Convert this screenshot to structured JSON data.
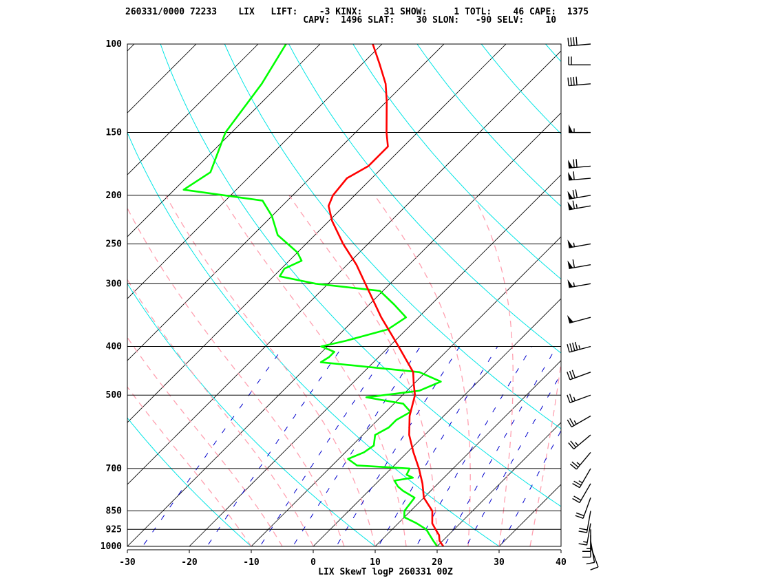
{
  "header": {
    "line1": "260331/0000 72233    LIX   LIFT:    -3 KINX:    31 SHOW:     1 TOTL:    46 CAPE:  1375",
    "line2": "                                 CAPV:  1496 SLAT:    30 SLON:   -90 SELV:    10"
  },
  "footer": "LIX SkewT logP 260331 00Z",
  "colors": {
    "temperature": "#ff0000",
    "dewpoint": "#00ff00",
    "isotherm": "#000000",
    "isobar": "#000000",
    "dry_adiabat": "#00e5e5",
    "moist_adiabat": "#ffa0b0",
    "mixing_ratio": "#0000cc",
    "wind_barb": "#000000"
  },
  "chart_data": {
    "type": "skewt",
    "station": "LIX",
    "station_id": "72233",
    "datetime": "260331/0000",
    "indices": {
      "LIFT": -3,
      "KINX": 31,
      "SHOW": 1,
      "TOTL": 46,
      "CAPE": 1375,
      "CAPV": 1496,
      "SLAT": 30,
      "SLON": -90,
      "SELV": 10
    },
    "pressure_levels": [
      100,
      150,
      200,
      250,
      300,
      400,
      500,
      700,
      850,
      925,
      1000
    ],
    "temperature_ticks": [
      -30,
      -20,
      -10,
      0,
      10,
      20,
      30,
      40
    ],
    "xlim": [
      -30,
      40
    ],
    "ylim": [
      1000,
      100
    ],
    "yscale": "log",
    "temperature_profile": [
      [
        1000,
        21.0
      ],
      [
        975,
        19.5
      ],
      [
        950,
        18.5
      ],
      [
        925,
        17.0
      ],
      [
        900,
        15.5
      ],
      [
        850,
        13.5
      ],
      [
        800,
        10.0
      ],
      [
        750,
        7.5
      ],
      [
        700,
        4.5
      ],
      [
        650,
        1.0
      ],
      [
        600,
        -2.5
      ],
      [
        550,
        -5.5
      ],
      [
        500,
        -8.0
      ],
      [
        475,
        -10.0
      ],
      [
        450,
        -12.0
      ],
      [
        400,
        -18.5
      ],
      [
        350,
        -26.0
      ],
      [
        300,
        -34.0
      ],
      [
        275,
        -38.5
      ],
      [
        250,
        -44.0
      ],
      [
        225,
        -49.5
      ],
      [
        210,
        -52.5
      ],
      [
        200,
        -53.5
      ],
      [
        185,
        -54.0
      ],
      [
        175,
        -52.5
      ],
      [
        160,
        -52.5
      ],
      [
        150,
        -55.0
      ],
      [
        130,
        -60.0
      ],
      [
        120,
        -63.0
      ],
      [
        110,
        -67.0
      ],
      [
        100,
        -71.5
      ]
    ],
    "dewpoint_profile": [
      [
        1000,
        20.0
      ],
      [
        975,
        18.5
      ],
      [
        950,
        17.0
      ],
      [
        925,
        15.5
      ],
      [
        900,
        13.0
      ],
      [
        875,
        10.0
      ],
      [
        850,
        9.0
      ],
      [
        800,
        8.5
      ],
      [
        775,
        5.5
      ],
      [
        760,
        4.0
      ],
      [
        740,
        2.5
      ],
      [
        730,
        5.0
      ],
      [
        720,
        3.5
      ],
      [
        700,
        3.0
      ],
      [
        690,
        -6.0
      ],
      [
        670,
        -8.5
      ],
      [
        650,
        -7.0
      ],
      [
        630,
        -6.5
      ],
      [
        600,
        -8.0
      ],
      [
        580,
        -7.0
      ],
      [
        560,
        -7.0
      ],
      [
        540,
        -6.0
      ],
      [
        520,
        -8.5
      ],
      [
        505,
        -15.5
      ],
      [
        490,
        -8.0
      ],
      [
        470,
        -6.0
      ],
      [
        450,
        -11.0
      ],
      [
        430,
        -28.5
      ],
      [
        420,
        -28.0
      ],
      [
        410,
        -28.0
      ],
      [
        400,
        -31.0
      ],
      [
        390,
        -28.0
      ],
      [
        370,
        -23.0
      ],
      [
        350,
        -22.0
      ],
      [
        330,
        -26.0
      ],
      [
        310,
        -30.5
      ],
      [
        300,
        -42.0
      ],
      [
        290,
        -49.0
      ],
      [
        280,
        -49.5
      ],
      [
        270,
        -48.0
      ],
      [
        260,
        -50.0
      ],
      [
        240,
        -56.0
      ],
      [
        220,
        -60.0
      ],
      [
        205,
        -64.0
      ],
      [
        195,
        -78.5
      ],
      [
        180,
        -77.0
      ],
      [
        150,
        -81.0
      ],
      [
        120,
        -83.0
      ],
      [
        100,
        -85.5
      ]
    ],
    "wind_barbs": [
      {
        "p": 1000,
        "dir": 160,
        "kt": 10
      },
      {
        "p": 975,
        "dir": 170,
        "kt": 10
      },
      {
        "p": 950,
        "dir": 180,
        "kt": 10
      },
      {
        "p": 925,
        "dir": 180,
        "kt": 15
      },
      {
        "p": 900,
        "dir": 190,
        "kt": 15
      },
      {
        "p": 850,
        "dir": 190,
        "kt": 20
      },
      {
        "p": 800,
        "dir": 200,
        "kt": 20
      },
      {
        "p": 750,
        "dir": 210,
        "kt": 20
      },
      {
        "p": 700,
        "dir": 210,
        "kt": 25
      },
      {
        "p": 650,
        "dir": 220,
        "kt": 25
      },
      {
        "p": 600,
        "dir": 230,
        "kt": 25
      },
      {
        "p": 550,
        "dir": 240,
        "kt": 25
      },
      {
        "p": 500,
        "dir": 250,
        "kt": 25
      },
      {
        "p": 450,
        "dir": 250,
        "kt": 30
      },
      {
        "p": 400,
        "dir": 255,
        "kt": 45
      },
      {
        "p": 350,
        "dir": 255,
        "kt": 50
      },
      {
        "p": 300,
        "dir": 260,
        "kt": 55
      },
      {
        "p": 275,
        "dir": 260,
        "kt": 60
      },
      {
        "p": 250,
        "dir": 260,
        "kt": 55
      },
      {
        "p": 210,
        "dir": 260,
        "kt": 65
      },
      {
        "p": 200,
        "dir": 260,
        "kt": 70
      },
      {
        "p": 185,
        "dir": 265,
        "kt": 60
      },
      {
        "p": 175,
        "dir": 265,
        "kt": 70
      },
      {
        "p": 150,
        "dir": 270,
        "kt": 55
      },
      {
        "p": 120,
        "dir": 265,
        "kt": 40
      },
      {
        "p": 110,
        "dir": 270,
        "kt": 20
      },
      {
        "p": 100,
        "dir": 265,
        "kt": 40
      }
    ],
    "title": "",
    "xlabel": "",
    "ylabel": "",
    "grid": true
  }
}
